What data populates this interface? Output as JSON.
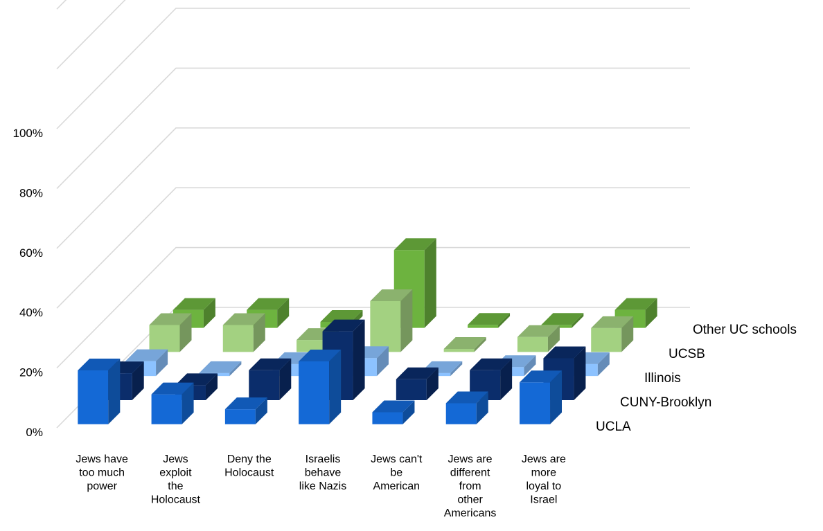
{
  "chart_data": {
    "type": "bar3d",
    "title": "",
    "xlabel": "",
    "ylabel": "",
    "ylim": [
      0,
      100
    ],
    "y_ticks": [
      "0%",
      "20%",
      "40%",
      "60%",
      "80%",
      "100%"
    ],
    "grid": true,
    "categories": [
      "Jews have too much power",
      "Jews exploit the Holocaust",
      "Deny the Holocaust",
      "Israelis behave like Nazis",
      "Jews can't be American",
      "Jews are different from other Americans",
      "Jews are more loyal to Israel"
    ],
    "category_lines": [
      [
        "Jews have",
        "too much",
        "power"
      ],
      [
        "Jews",
        "exploit",
        "the",
        "Holocaust"
      ],
      [
        "Deny the",
        "Holocaust"
      ],
      [
        "Israelis",
        "behave",
        "like Nazis"
      ],
      [
        "Jews can't",
        "be",
        "American"
      ],
      [
        "Jews are",
        "different",
        "from",
        "other",
        "Americans"
      ],
      [
        "Jews are",
        "more",
        "loyal to",
        "Israel"
      ]
    ],
    "series": [
      {
        "name": "UCLA",
        "color": "#1469d6",
        "values": [
          18,
          10,
          5,
          21,
          4,
          7,
          14
        ]
      },
      {
        "name": "CUNY-Brooklyn",
        "color": "#0b2d6b",
        "values": [
          9,
          5,
          10,
          23,
          7,
          10,
          14
        ]
      },
      {
        "name": "Illinois",
        "color": "#8cc2ff",
        "values": [
          5,
          1,
          4,
          6,
          1,
          3,
          4
        ]
      },
      {
        "name": "UCSB",
        "color": "#a3d181",
        "values": [
          9,
          9,
          4,
          17,
          1,
          5,
          8
        ]
      },
      {
        "name": "Other UC schools",
        "color": "#6db33f",
        "values": [
          6,
          6,
          2,
          26,
          1,
          1,
          6
        ]
      }
    ]
  }
}
